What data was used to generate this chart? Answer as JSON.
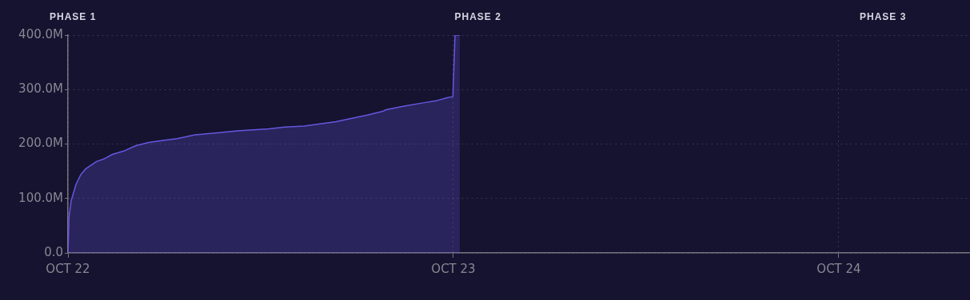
{
  "chart_data": {
    "type": "area",
    "annotations": [
      "PHASE 1",
      "PHASE 2",
      "PHASE 3"
    ],
    "x": [
      "--10-22T00:00",
      "--10-22T00:04",
      "--10-22T00:12",
      "--10-22T00:30",
      "--10-22T00:48",
      "--10-22T01:05",
      "--10-22T01:29",
      "--10-22T01:47",
      "--10-22T02:16",
      "--10-22T02:46",
      "--10-22T03:33",
      "--10-22T04:14",
      "--10-22T05:02",
      "--10-22T06:00",
      "--10-22T06:48",
      "--10-22T07:54",
      "--10-22T09:10",
      "--10-22T10:33",
      "--10-22T12:30",
      "--10-22T13:30",
      "--10-22T14:42",
      "--10-22T15:42",
      "--10-22T16:42",
      "--10-22T17:30",
      "--10-22T18:38",
      "--10-22T19:36",
      "--10-22T19:48",
      "--10-22T21:00",
      "--10-22T22:12",
      "--10-22T23:00",
      "--10-22T23:36",
      "--10-22T23:58",
      "--10-23T00:06",
      "--10-23T00:24"
    ],
    "series": [
      {
        "color": "#6657e0",
        "values": [
          0,
          66,
          96,
          126,
          144,
          154,
          162,
          168,
          173,
          181,
          188,
          197,
          203,
          207,
          210,
          217,
          220,
          224,
          228,
          231,
          233,
          237,
          241,
          246,
          253,
          260,
          263,
          270,
          276,
          280,
          285,
          287,
          400,
          400
        ]
      }
    ],
    "xlim": [
      "--10-22",
      "--10-24T08:10"
    ],
    "xticks": [
      {
        "value": "--10-22",
        "label": "OCT 22"
      },
      {
        "value": "--10-23",
        "label": "OCT 23"
      },
      {
        "value": "--10-24",
        "label": "OCT 24"
      }
    ],
    "ylim": [
      0,
      400
    ],
    "yticks": [
      {
        "value": 0,
        "label": "0.0"
      },
      {
        "value": 100,
        "label": "100.0M"
      },
      {
        "value": 200,
        "label": "200.0M"
      },
      {
        "value": 300,
        "label": "300.0M"
      },
      {
        "value": 400,
        "label": "400.0M"
      }
    ],
    "grid": true,
    "marker": "none",
    "legend": false
  }
}
